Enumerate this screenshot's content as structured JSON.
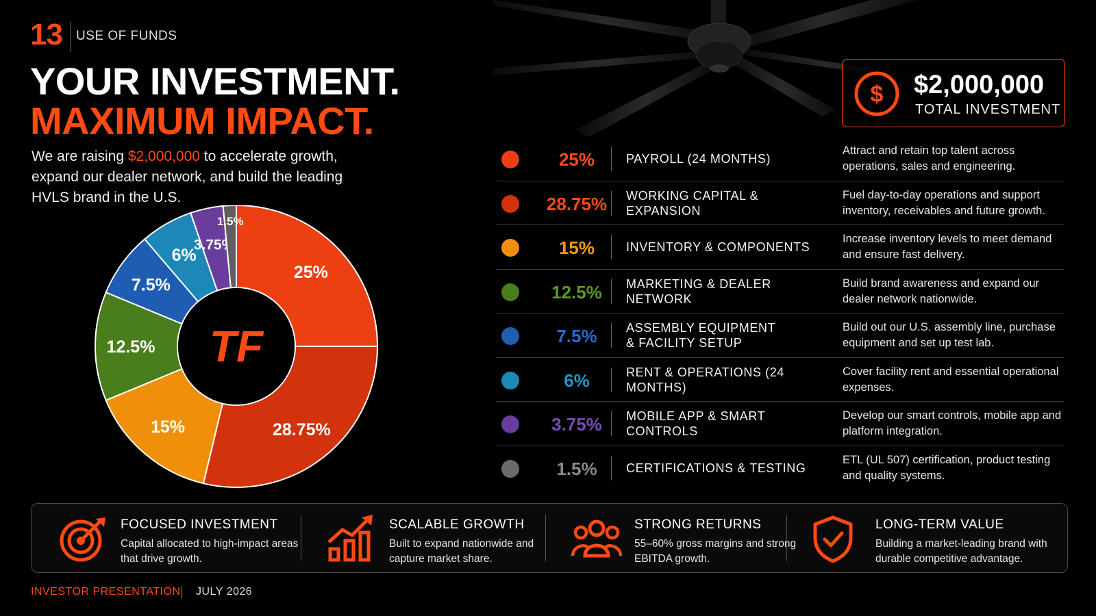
{
  "header": {
    "section_number": "13",
    "section_title": "USE OF FUNDS"
  },
  "title": {
    "line1": "YOUR INVESTMENT.",
    "line2": "MAXIMUM IMPACT."
  },
  "intro": {
    "before": "We are raising ",
    "amount": "$2,000,000",
    "after": " to accelerate growth, expand our dealer network, and build the leading HVLS brand in the U.S."
  },
  "total": {
    "amount": "$2,000,000",
    "label": "TOTAL INVESTMENT",
    "icon": "dollar-icon"
  },
  "logo": {
    "text": "TF"
  },
  "accent_color": "#ff4a14",
  "chart_data": {
    "type": "pie",
    "style": "donut",
    "unit": "%",
    "slices": [
      {
        "name": "PAYROLL (24 MONTHS)",
        "label": "25%",
        "value": 25,
        "color": "#ec4012"
      },
      {
        "name": "WORKING CAPITAL & EXPANSION",
        "label": "28.75%",
        "value": 28.75,
        "color": "#d2330c"
      },
      {
        "name": "INVENTORY & COMPONENTS",
        "label": "15%",
        "value": 15,
        "color": "#f0900a"
      },
      {
        "name": "MARKETING & DEALER NETWORK",
        "label": "12.5%",
        "value": 12.5,
        "color": "#4a7e1c"
      },
      {
        "name": "ASSEMBLY EQUIPMENT & FACILITY SETUP",
        "label": "7.5%",
        "value": 7.5,
        "color": "#1f5db3"
      },
      {
        "name": "RENT & OPERATIONS (24 MONTHS)",
        "label": "6%",
        "value": 6,
        "color": "#1d87b8"
      },
      {
        "name": "MOBILE APP & SMART CONTROLS",
        "label": "3.75%",
        "value": 3.75,
        "color": "#6a3c9c"
      },
      {
        "name": "CERTIFICATIONS & TESTING",
        "label": "1.5%",
        "value": 1.5,
        "color": "#5f5f5f"
      }
    ]
  },
  "funds": [
    {
      "pct": "25%",
      "pct_color": "#ff4a14",
      "dot_color": "#ec4012",
      "name": "PAYROLL (24 MONTHS)",
      "desc": "Attract and retain top talent across operations, sales and engineering."
    },
    {
      "pct": "28.75%",
      "pct_color": "#ff4a14",
      "dot_color": "#d2330c",
      "name": "WORKING CAPITAL & EXPANSION",
      "desc": "Fuel day-to-day operations and support inventory, receivables and future growth."
    },
    {
      "pct": "15%",
      "pct_color": "#f59a12",
      "dot_color": "#f0900a",
      "name": "INVENTORY & COMPONENTS",
      "desc": "Increase inventory levels to meet demand and ensure fast delivery."
    },
    {
      "pct": "12.5%",
      "pct_color": "#5c9a22",
      "dot_color": "#4a7e1c",
      "name": "MARKETING & DEALER NETWORK",
      "desc": "Build brand awareness and expand our dealer network nationwide."
    },
    {
      "pct": "7.5%",
      "pct_color": "#2a6bd0",
      "dot_color": "#1f5db3",
      "name": "ASSEMBLY EQUIPMENT\n& FACILITY SETUP",
      "desc": "Build out our U.S. assembly line, purchase equipment and set up test lab."
    },
    {
      "pct": "6%",
      "pct_color": "#1e96cc",
      "dot_color": "#1d87b8",
      "name": "RENT & OPERATIONS (24 MONTHS)",
      "desc": "Cover facility rent and essential operational expenses."
    },
    {
      "pct": "3.75%",
      "pct_color": "#7a48b8",
      "dot_color": "#6a3c9c",
      "name": "MOBILE APP & SMART CONTROLS",
      "desc": "Develop our smart controls, mobile app and platform integration."
    },
    {
      "pct": "1.5%",
      "pct_color": "#8a8a8a",
      "dot_color": "#6a6a6a",
      "name": "CERTIFICATIONS & TESTING",
      "desc": "ETL (UL 507) certification, product testing and quality systems."
    }
  ],
  "benefits": [
    {
      "icon": "target-icon",
      "title": "FOCUSED INVESTMENT",
      "desc": "Capital allocated to high-impact areas that drive growth."
    },
    {
      "icon": "growth-chart-icon",
      "title": "SCALABLE GROWTH",
      "desc": "Built to expand nationwide and capture market share."
    },
    {
      "icon": "team-icon",
      "title": "STRONG RETURNS",
      "desc": "55–60% gross margins and strong EBITDA growth."
    },
    {
      "icon": "shield-check-icon",
      "title": "LONG-TERM VALUE",
      "desc": "Building a market-leading brand with durable competitive advantage."
    }
  ],
  "footer": {
    "left": "INVESTOR PRESENTATION",
    "right": "JULY 2026"
  }
}
